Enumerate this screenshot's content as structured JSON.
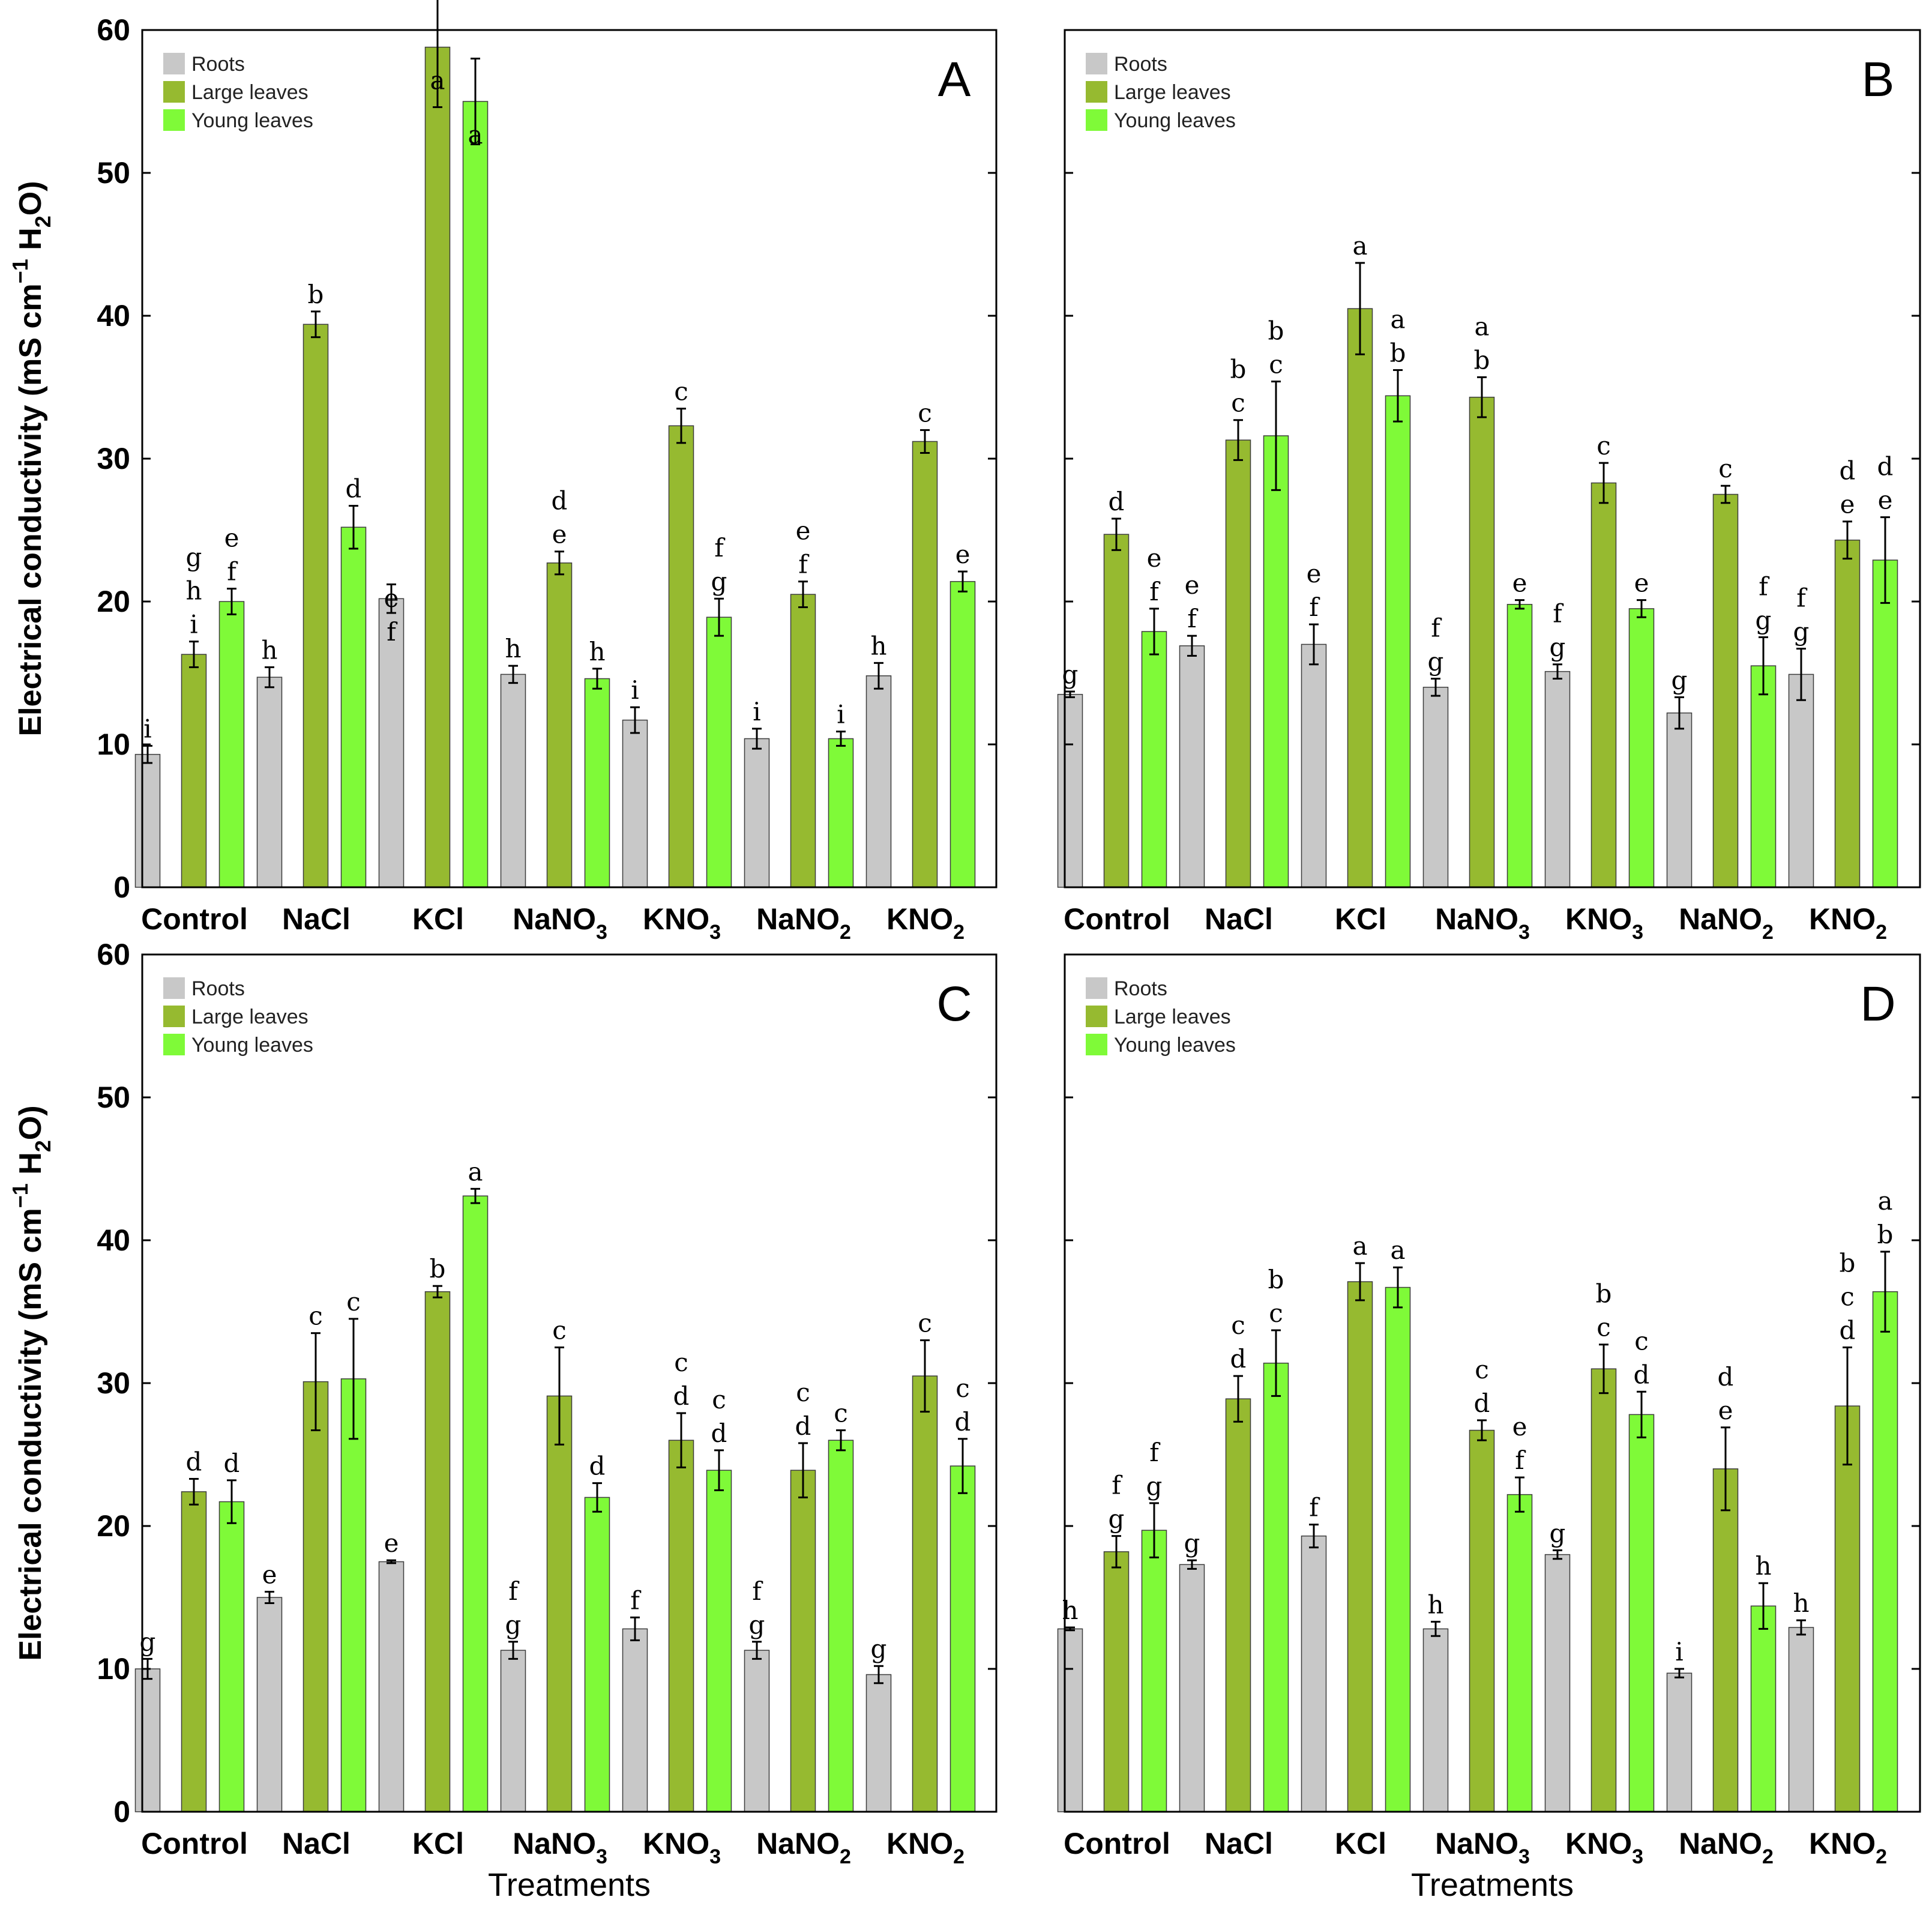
{
  "chart_data": [
    {
      "type": "bar",
      "panel": "A",
      "title": "",
      "xlabel": "",
      "ylabel": "Electrical conductivity (mS cm−1 H2O)",
      "ylim": [
        0,
        60
      ],
      "yticks": [
        0,
        10,
        20,
        30,
        40,
        50,
        60
      ],
      "categories": [
        "Control",
        "NaCl",
        "KCl",
        "NaNO3",
        "KNO3",
        "NaNO2",
        "KNO2"
      ],
      "series": [
        {
          "name": "Roots",
          "values": [
            9.3,
            14.7,
            20.2,
            14.9,
            11.7,
            10.4,
            14.8
          ],
          "errors": [
            0.6,
            0.7,
            1.0,
            0.6,
            0.9,
            0.7,
            0.9
          ],
          "letters": [
            "i",
            "h",
            "ef",
            "h",
            "i",
            "i",
            "h"
          ]
        },
        {
          "name": "Large leaves",
          "values": [
            16.3,
            39.4,
            58.8,
            22.7,
            32.3,
            20.5,
            31.2
          ],
          "errors": [
            0.9,
            0.9,
            4.2,
            0.8,
            1.2,
            0.9,
            0.8
          ],
          "letters": [
            "ghi",
            "b",
            "a",
            "de",
            "c",
            "ef",
            "c"
          ]
        },
        {
          "name": "Young leaves",
          "values": [
            20.0,
            25.2,
            55.0,
            14.6,
            18.9,
            10.4,
            21.4
          ],
          "errors": [
            0.9,
            1.5,
            3.0,
            0.7,
            1.3,
            0.5,
            0.7
          ],
          "letters": [
            "ef",
            "d",
            "a",
            "h",
            "fg",
            "i",
            "e"
          ]
        }
      ]
    },
    {
      "type": "bar",
      "panel": "B",
      "title": "",
      "xlabel": "",
      "ylabel": "",
      "ylim": [
        0,
        60
      ],
      "yticks": [
        0,
        10,
        20,
        30,
        40,
        50,
        60
      ],
      "categories": [
        "Control",
        "NaCl",
        "KCl",
        "NaNO3",
        "KNO3",
        "NaNO2",
        "KNO2"
      ],
      "series": [
        {
          "name": "Roots",
          "values": [
            13.5,
            16.9,
            17.0,
            14.0,
            15.1,
            12.2,
            14.9
          ],
          "errors": [
            0.2,
            0.7,
            1.4,
            0.6,
            0.5,
            1.1,
            1.8
          ],
          "letters": [
            "g",
            "ef",
            "ef",
            "fg",
            "fg",
            "g",
            "fg"
          ]
        },
        {
          "name": "Large leaves",
          "values": [
            24.7,
            31.3,
            40.5,
            34.3,
            28.3,
            27.5,
            24.3
          ],
          "errors": [
            1.1,
            1.4,
            3.2,
            1.4,
            1.4,
            0.6,
            1.3
          ],
          "letters": [
            "d",
            "bc",
            "a",
            "ab",
            "c",
            "c",
            "de"
          ]
        },
        {
          "name": "Young leaves",
          "values": [
            17.9,
            31.6,
            34.4,
            19.8,
            19.5,
            15.5,
            22.9
          ],
          "errors": [
            1.6,
            3.8,
            1.8,
            0.3,
            0.6,
            2.0,
            3.0
          ],
          "letters": [
            "ef",
            "bc",
            "ab",
            "e",
            "e",
            "fg",
            "de"
          ]
        }
      ]
    },
    {
      "type": "bar",
      "panel": "C",
      "title": "",
      "xlabel": "Treatments",
      "ylabel": "Electrical conductivity (mS cm−1 H2O)",
      "ylim": [
        0,
        60
      ],
      "yticks": [
        0,
        10,
        20,
        30,
        40,
        50,
        60
      ],
      "categories": [
        "Control",
        "NaCl",
        "KCl",
        "NaNO3",
        "KNO3",
        "NaNO2",
        "KNO2"
      ],
      "series": [
        {
          "name": "Roots",
          "values": [
            10.0,
            15.0,
            17.5,
            11.3,
            12.8,
            11.3,
            9.6
          ],
          "errors": [
            0.7,
            0.4,
            0.1,
            0.6,
            0.8,
            0.6,
            0.6
          ],
          "letters": [
            "g",
            "e",
            "e",
            "fg",
            "f",
            "fg",
            "g"
          ]
        },
        {
          "name": "Large leaves",
          "values": [
            22.4,
            30.1,
            36.4,
            29.1,
            26.0,
            23.9,
            30.5
          ],
          "errors": [
            0.9,
            3.4,
            0.4,
            3.4,
            1.9,
            1.9,
            2.5
          ],
          "letters": [
            "d",
            "c",
            "b",
            "c",
            "cd",
            "cd",
            "c"
          ]
        },
        {
          "name": "Young leaves",
          "values": [
            21.7,
            30.3,
            43.1,
            22.0,
            23.9,
            26.0,
            24.2
          ],
          "errors": [
            1.5,
            4.2,
            0.5,
            1.0,
            1.4,
            0.7,
            1.9
          ],
          "letters": [
            "d",
            "c",
            "a",
            "d",
            "cd",
            "c",
            "cd"
          ]
        }
      ]
    },
    {
      "type": "bar",
      "panel": "D",
      "title": "",
      "xlabel": "Treatments",
      "ylabel": "",
      "ylim": [
        0,
        60
      ],
      "yticks": [
        0,
        10,
        20,
        30,
        40,
        50,
        60
      ],
      "categories": [
        "Control",
        "NaCl",
        "KCl",
        "NaNO3",
        "KNO3",
        "NaNO2",
        "KNO2"
      ],
      "series": [
        {
          "name": "Roots",
          "values": [
            12.8,
            17.3,
            19.3,
            12.8,
            18.0,
            9.7,
            12.9
          ],
          "errors": [
            0.1,
            0.3,
            0.8,
            0.5,
            0.3,
            0.3,
            0.5
          ],
          "letters": [
            "h",
            "g",
            "f",
            "h",
            "g",
            "i",
            "h"
          ]
        },
        {
          "name": "Large leaves",
          "values": [
            18.2,
            28.9,
            37.1,
            26.7,
            31.0,
            24.0,
            28.4
          ],
          "errors": [
            1.1,
            1.6,
            1.3,
            0.7,
            1.7,
            2.9,
            4.1
          ],
          "letters": [
            "fg",
            "cd",
            "a",
            "cd",
            "bc",
            "de",
            "bcd"
          ]
        },
        {
          "name": "Young leaves",
          "values": [
            19.7,
            31.4,
            36.7,
            22.2,
            27.8,
            14.4,
            36.4
          ],
          "errors": [
            1.9,
            2.3,
            1.4,
            1.2,
            1.6,
            1.6,
            2.8
          ],
          "letters": [
            "fg",
            "bc",
            "a",
            "ef",
            "cd",
            "h",
            "ab"
          ]
        }
      ]
    }
  ],
  "legend": {
    "entries": [
      "Roots",
      "Large leaves",
      "Young leaves"
    ],
    "colors": [
      "#c8c8c8",
      "#96ba30",
      "#7ffa38"
    ]
  },
  "panels": [
    "A",
    "B",
    "C",
    "D"
  ],
  "tick_labels": [
    {
      "base": "Control",
      "sub": ""
    },
    {
      "base": "NaCl",
      "sub": ""
    },
    {
      "base": "KCl",
      "sub": ""
    },
    {
      "base": "NaNO",
      "sub": "3"
    },
    {
      "base": "KNO",
      "sub": "3"
    },
    {
      "base": "NaNO",
      "sub": "2"
    },
    {
      "base": "KNO",
      "sub": "2"
    }
  ],
  "ylabel_parts": {
    "main": "Electrical conductivity (mS cm",
    "exp": "−1",
    "mid": " H",
    "sub": "2",
    "end": "O)"
  },
  "xlabel_text": "Treatments",
  "colors": {
    "roots": "#c8c8c8",
    "large_leaves": "#96ba30",
    "young_leaves": "#7ffa38",
    "axis": "#000000"
  }
}
